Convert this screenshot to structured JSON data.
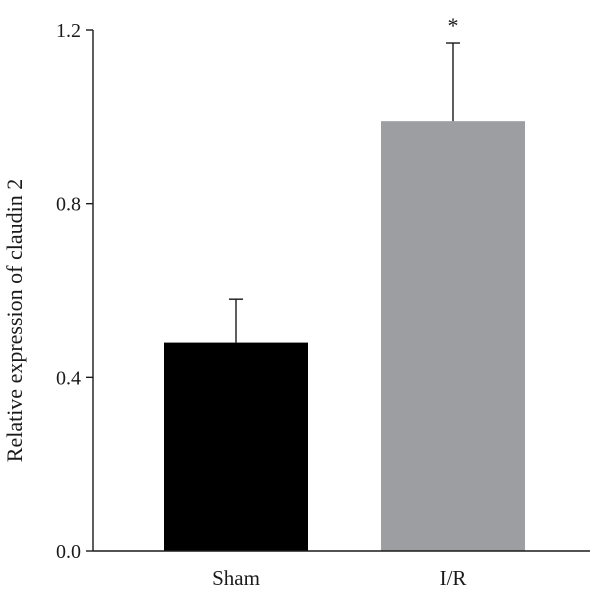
{
  "chart_data": {
    "type": "bar",
    "categories": [
      "Sham",
      "I/R"
    ],
    "values": [
      0.48,
      0.99
    ],
    "errors": [
      0.1,
      0.18
    ],
    "colors": [
      "#000000",
      "#9d9ea2"
    ],
    "annotations": [
      "",
      "*"
    ],
    "ylabel": "Relative expression of claudin 2",
    "xlabel": "",
    "title": "",
    "ylim": [
      0.0,
      1.2
    ],
    "yticks": [
      0.0,
      0.4,
      0.8,
      1.2
    ],
    "ytick_labels": [
      "0.0",
      "0.4",
      "0.8",
      "1.2"
    ],
    "grid": false
  }
}
